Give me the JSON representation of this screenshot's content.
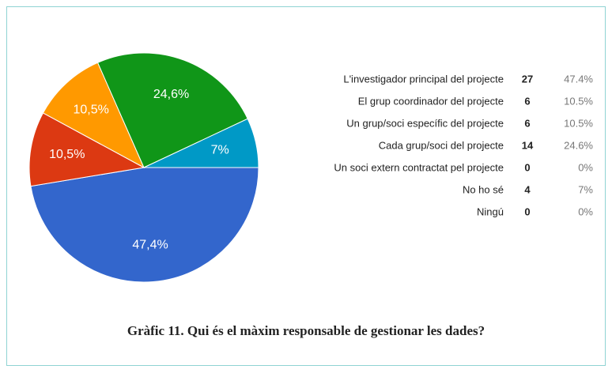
{
  "chart_data": {
    "type": "pie",
    "title": "Gràfic 11. Qui és el màxim responsable de gestionar les dades?",
    "categories": [
      "L'investigador principal del projecte",
      "El grup coordinador del projecte",
      "Un grup/soci específic del projecte",
      "Cada grup/soci del projecte",
      "Un soci extern contractat pel projecte",
      "No ho sé",
      "Ningú"
    ],
    "counts": [
      27,
      6,
      6,
      14,
      0,
      4,
      0
    ],
    "values": [
      47.4,
      10.5,
      10.5,
      24.6,
      0,
      7,
      0
    ],
    "value_labels": [
      "47,4%",
      "10,5%",
      "10,5%",
      "24,6%",
      null,
      "7%",
      null
    ],
    "percent_labels": [
      "47.4%",
      "10.5%",
      "10.5%",
      "24.6%",
      "0%",
      "7%",
      "0%"
    ],
    "colors": [
      "#3366cc",
      "#dc3912",
      "#ff9900",
      "#109618",
      "#990099",
      "#0099c6",
      "#dd4477"
    ]
  }
}
